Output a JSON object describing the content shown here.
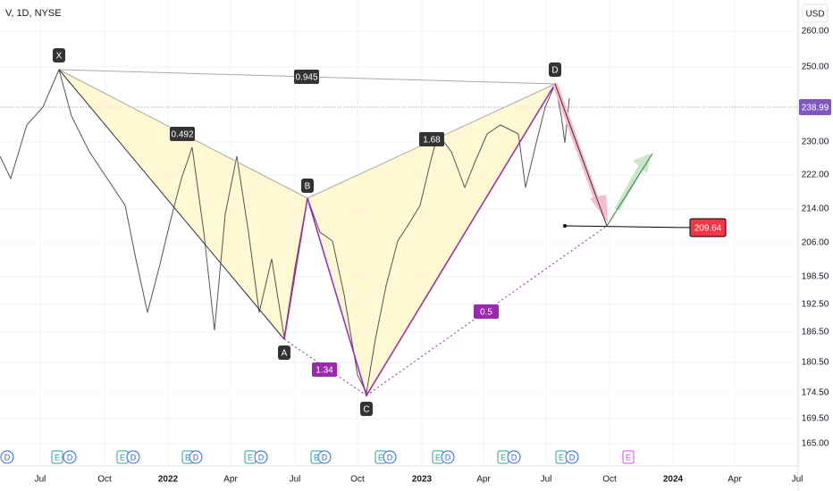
{
  "header": {
    "symbol": "V, 1D, NYSE",
    "currency": "USD"
  },
  "price_axis": [
    "260.00",
    "250.00",
    "230.00",
    "222.00",
    "214.00",
    "206.00",
    "198.50",
    "192.50",
    "186.50",
    "180.50",
    "174.50",
    "169.50",
    "165.00"
  ],
  "last_price": "238.99",
  "time_axis": [
    "Jul",
    "Oct",
    "2022",
    "Apr",
    "Jul",
    "Oct",
    "2023",
    "Apr",
    "Jul",
    "Oct",
    "2024",
    "Apr",
    "Jul"
  ],
  "pattern": {
    "points": [
      "X",
      "A",
      "B",
      "C",
      "D"
    ],
    "ratios": [
      "0.945",
      "0.492",
      "1.68",
      "1.34",
      "0.5"
    ],
    "target": "209.64"
  },
  "events": [
    "D",
    "E",
    "D",
    "E",
    "D",
    "E",
    "D",
    "E",
    "D",
    "E",
    "D",
    "E",
    "D",
    "E",
    "D",
    "E",
    "D",
    "E",
    "D",
    "E"
  ]
}
